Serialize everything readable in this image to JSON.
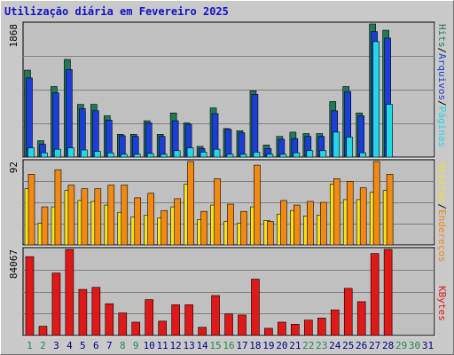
{
  "title": "Utilização diária em Fevereiro 2025",
  "colors": {
    "hits": "#1f7a55",
    "files": "#1b3fd6",
    "pages": "#22d8e8",
    "visits": "#f5e21a",
    "sites": "#f28a12",
    "kbytes": "#e01818",
    "weekend_label": "#1f8a4c",
    "weekday_label": "#000080"
  },
  "chart_data": [
    {
      "type": "bar",
      "title": "Utilização diária em Fevereiro 2025",
      "ymax_label": "1868",
      "ylim": [
        0,
        1868
      ],
      "categories": [
        "1",
        "2",
        "3",
        "4",
        "5",
        "6",
        "7",
        "8",
        "9",
        "10",
        "11",
        "12",
        "13",
        "14",
        "15",
        "16",
        "17",
        "18",
        "19",
        "20",
        "21",
        "22",
        "23",
        "24",
        "25",
        "26",
        "27",
        "28",
        "29",
        "30",
        "31"
      ],
      "series": [
        {
          "name": "Hits",
          "values": [
            1220,
            230,
            990,
            1370,
            740,
            740,
            580,
            320,
            320,
            510,
            320,
            620,
            480,
            150,
            690,
            400,
            370,
            930,
            170,
            290,
            350,
            330,
            330,
            780,
            990,
            620,
            1868,
            1780,
            0,
            0,
            0
          ]
        },
        {
          "name": "Arquivos",
          "values": [
            1110,
            180,
            900,
            1230,
            680,
            650,
            520,
            300,
            290,
            480,
            290,
            510,
            460,
            120,
            610,
            390,
            340,
            880,
            120,
            250,
            260,
            290,
            290,
            650,
            920,
            580,
            1760,
            1670,
            0,
            0,
            0
          ]
        },
        {
          "name": "Páginas",
          "values": [
            130,
            60,
            110,
            130,
            100,
            80,
            60,
            40,
            40,
            50,
            40,
            90,
            130,
            70,
            110,
            40,
            40,
            70,
            40,
            40,
            60,
            90,
            90,
            350,
            280,
            60,
            1620,
            740,
            0,
            0,
            0
          ]
        }
      ],
      "legend": [
        "Hits",
        "Arquivos",
        "Páginas"
      ]
    },
    {
      "type": "bar",
      "ymax_label": "92",
      "ylim": [
        0,
        92
      ],
      "categories": [
        "1",
        "2",
        "3",
        "4",
        "5",
        "6",
        "7",
        "8",
        "9",
        "10",
        "11",
        "12",
        "13",
        "14",
        "15",
        "16",
        "17",
        "18",
        "19",
        "20",
        "21",
        "22",
        "23",
        "24",
        "25",
        "26",
        "27",
        "28",
        "29",
        "30",
        "31"
      ],
      "series": [
        {
          "name": "Visitas",
          "values": [
            62,
            24,
            42,
            60,
            49,
            48,
            44,
            36,
            31,
            33,
            30,
            42,
            67,
            28,
            44,
            26,
            24,
            42,
            27,
            34,
            38,
            32,
            33,
            67,
            50,
            50,
            58,
            60,
            0,
            0,
            0
          ]
        },
        {
          "name": "Endereços",
          "values": [
            78,
            42,
            83,
            66,
            62,
            62,
            66,
            66,
            52,
            57,
            38,
            51,
            92,
            37,
            73,
            45,
            37,
            88,
            26,
            49,
            44,
            48,
            47,
            73,
            70,
            63,
            92,
            78,
            0,
            0,
            0
          ]
        }
      ],
      "legend": [
        "Visitas",
        "Endereços"
      ]
    },
    {
      "type": "bar",
      "ymax_label": "84067",
      "ylim": [
        0,
        84067
      ],
      "categories": [
        "1",
        "2",
        "3",
        "4",
        "5",
        "6",
        "7",
        "8",
        "9",
        "10",
        "11",
        "12",
        "13",
        "14",
        "15",
        "16",
        "17",
        "18",
        "19",
        "20",
        "21",
        "22",
        "23",
        "24",
        "25",
        "26",
        "27",
        "28",
        "29",
        "30",
        "31"
      ],
      "series": [
        {
          "name": "KBytes",
          "values": [
            77000,
            9000,
            61000,
            84067,
            45000,
            47000,
            31000,
            22000,
            13000,
            35000,
            14000,
            30000,
            30000,
            8000,
            39000,
            21000,
            20000,
            55000,
            7000,
            13000,
            11000,
            15000,
            17000,
            25000,
            46000,
            33000,
            80000,
            84067,
            0,
            0,
            0
          ]
        }
      ],
      "legend": [
        "KBytes"
      ]
    }
  ],
  "x_axis": {
    "labels": [
      "1",
      "2",
      "3",
      "4",
      "5",
      "6",
      "7",
      "8",
      "9",
      "10",
      "11",
      "12",
      "13",
      "14",
      "15",
      "16",
      "17",
      "18",
      "19",
      "20",
      "21",
      "22",
      "23",
      "24",
      "25",
      "26",
      "27",
      "28",
      "29",
      "30",
      "31"
    ],
    "weekend_days": [
      "1",
      "2",
      "8",
      "9",
      "15",
      "16",
      "22",
      "23",
      "29",
      "30"
    ]
  },
  "right_labels": {
    "top": [
      {
        "text": "Hits",
        "color": "#1f7a55"
      },
      {
        "text": "/",
        "color": "#000000"
      },
      {
        "text": "Arquivos",
        "color": "#1b3fd6"
      },
      {
        "text": "/",
        "color": "#000000"
      },
      {
        "text": "Páginas",
        "color": "#22d8e8"
      }
    ],
    "middle": [
      {
        "text": "Visitas",
        "color": "#f5e21a"
      },
      {
        "text": "/",
        "color": "#000000"
      },
      {
        "text": "Endereços",
        "color": "#f28a12"
      }
    ],
    "bottom": [
      {
        "text": "KBytes",
        "color": "#e01818"
      }
    ]
  }
}
